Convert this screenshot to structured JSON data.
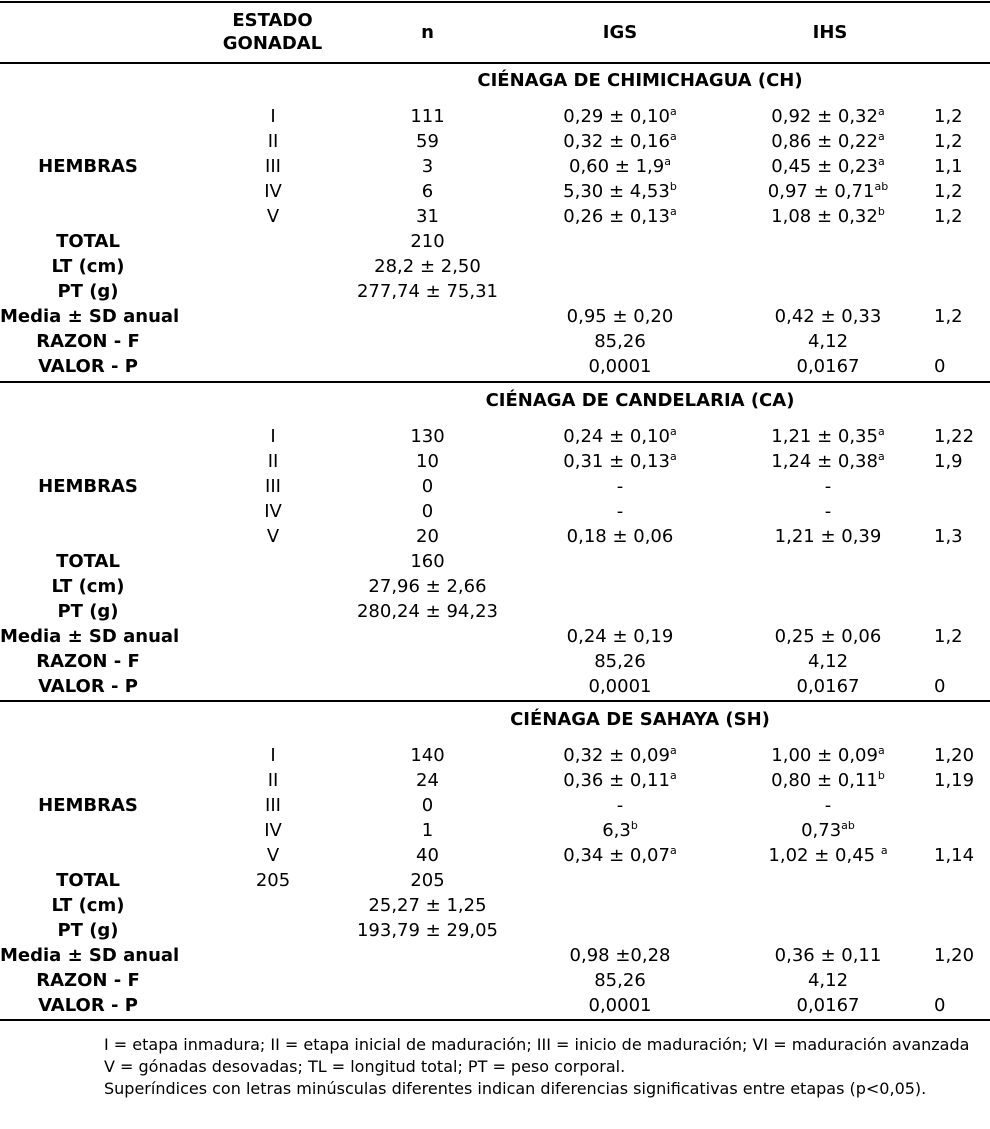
{
  "header": {
    "estado_line1": "ESTADO",
    "estado_line2": "GONADAL",
    "n": "n",
    "igs": "IGS",
    "ihs": "IHS"
  },
  "sections": [
    {
      "title": "CIÉNAGA DE CHIMICHAGUA (CH)",
      "group_label": "HEMBRAS",
      "rows": [
        {
          "stage": "I",
          "n": "111",
          "igs": "0,29 ± 0,10",
          "igs_sup": "a",
          "ihs": "0,92 ± 0,32",
          "ihs_sup": "a",
          "extra": "1,2"
        },
        {
          "stage": "II",
          "n": "59",
          "igs": "0,32 ± 0,16",
          "igs_sup": "a",
          "ihs": "0,86 ± 0,22",
          "ihs_sup": "a",
          "extra": "1,2"
        },
        {
          "stage": "III",
          "n": "3",
          "igs": "0,60 ± 1,9",
          "igs_sup": "a",
          "ihs": "0,45 ± 0,23",
          "ihs_sup": "a",
          "extra": "1,1"
        },
        {
          "stage": "IV",
          "n": "6",
          "igs": "5,30 ± 4,53",
          "igs_sup": "b",
          "ihs": "0,97 ± 0,71",
          "ihs_sup": "ab",
          "extra": "1,2"
        },
        {
          "stage": "V",
          "n": "31",
          "igs": "0,26 ± 0,13",
          "igs_sup": "a",
          "ihs": "1,08 ± 0,32",
          "ihs_sup": "b",
          "extra": "1,2"
        }
      ],
      "total_label": "TOTAL",
      "total_stage": "",
      "total_n": "210",
      "lt_label": "LT (cm)",
      "lt": "28,2 ± 2,50",
      "pt_label": "PT (g)",
      "pt": "277,74 ± 75,31",
      "media_label": "Media ± SD anual",
      "media_igs": "0,95 ± 0,20",
      "media_ihs": "0,42 ± 0,33",
      "media_extra": "1,2",
      "razon_label": "RAZON - F",
      "razon_igs": "85,26",
      "razon_ihs": "4,12",
      "valor_label": "VALOR - P",
      "valor_igs": "0,0001",
      "valor_ihs": "0,0167",
      "valor_extra": "0"
    },
    {
      "title": "CIÉNAGA DE CANDELARIA (CA)",
      "group_label": "HEMBRAS",
      "rows": [
        {
          "stage": "I",
          "n": "130",
          "igs": "0,24 ± 0,10",
          "igs_sup": "a",
          "ihs": "1,21 ± 0,35",
          "ihs_sup": "a",
          "extra": "1,22"
        },
        {
          "stage": "II",
          "n": "10",
          "igs": "0,31 ± 0,13",
          "igs_sup": "a",
          "ihs": "1,24 ± 0,38",
          "ihs_sup": "a",
          "extra": "1,9"
        },
        {
          "stage": "III",
          "n": "0",
          "igs": "-",
          "igs_sup": "",
          "ihs": "-",
          "ihs_sup": "",
          "extra": ""
        },
        {
          "stage": "IV",
          "n": "0",
          "igs": "-",
          "igs_sup": "",
          "ihs": "-",
          "ihs_sup": "",
          "extra": ""
        },
        {
          "stage": "V",
          "n": "20",
          "igs": "0,18 ± 0,06",
          "igs_sup": "",
          "ihs": "1,21 ± 0,39",
          "ihs_sup": "",
          "extra": "1,3"
        }
      ],
      "total_label": "TOTAL",
      "total_stage": "",
      "total_n": "160",
      "lt_label": "LT (cm)",
      "lt": "27,96 ± 2,66",
      "pt_label": "PT (g)",
      "pt": "280,24 ± 94,23",
      "media_label": "Media ± SD anual",
      "media_igs": "0,24 ± 0,19",
      "media_ihs": "0,25 ± 0,06",
      "media_extra": "1,2",
      "razon_label": "RAZON - F",
      "razon_igs": "85,26",
      "razon_ihs": "4,12",
      "valor_label": "VALOR - P",
      "valor_igs": "0,0001",
      "valor_ihs": "0,0167",
      "valor_extra": "0"
    },
    {
      "title": "CIÉNAGA DE SAHAYA (SH)",
      "group_label": "HEMBRAS",
      "rows": [
        {
          "stage": "I",
          "n": "140",
          "igs": "0,32 ± 0,09",
          "igs_sup": "a",
          "ihs": "1,00 ± 0,09",
          "ihs_sup": "a",
          "extra": "1,20"
        },
        {
          "stage": "II",
          "n": "24",
          "igs": "0,36 ± 0,11",
          "igs_sup": "a",
          "ihs": "0,80 ± 0,11",
          "ihs_sup": "b",
          "extra": "1,19"
        },
        {
          "stage": "III",
          "n": "0",
          "igs": "-",
          "igs_sup": "",
          "ihs": "-",
          "ihs_sup": "",
          "extra": ""
        },
        {
          "stage": "IV",
          "n": "1",
          "igs": "6,3",
          "igs_sup": "b",
          "ihs": "0,73",
          "ihs_sup": "ab",
          "extra": ""
        },
        {
          "stage": "V",
          "n": "40",
          "igs": "0,34 ± 0,07",
          "igs_sup": "a",
          "ihs": "1,02 ± 0,45 ",
          "ihs_sup": "a",
          "extra": "1,14"
        }
      ],
      "total_label": "TOTAL",
      "total_stage": "205",
      "total_n": "205",
      "lt_label": "LT (cm)",
      "lt": "25,27 ± 1,25",
      "pt_label": "PT (g)",
      "pt": "193,79 ± 29,05",
      "media_label": "Media ± SD anual",
      "media_igs": "0,98 ±0,28",
      "media_ihs": "0,36 ± 0,11",
      "media_extra": "1,20",
      "razon_label": "RAZON - F",
      "razon_igs": "85,26",
      "razon_ihs": "4,12",
      "valor_label": "VALOR - P",
      "valor_igs": "0,0001",
      "valor_ihs": "0,0167",
      "valor_extra": "0"
    }
  ],
  "footnotes": [
    "I = etapa inmadura; II = etapa inicial de maduración; III = inicio de maduración; VI = maduración avanzada",
    "V = gónadas desovadas; TL = longitud total; PT = peso corporal.",
    "Superíndices con letras minúsculas diferentes indican diferencias significativas entre etapas (p<0,05)."
  ]
}
